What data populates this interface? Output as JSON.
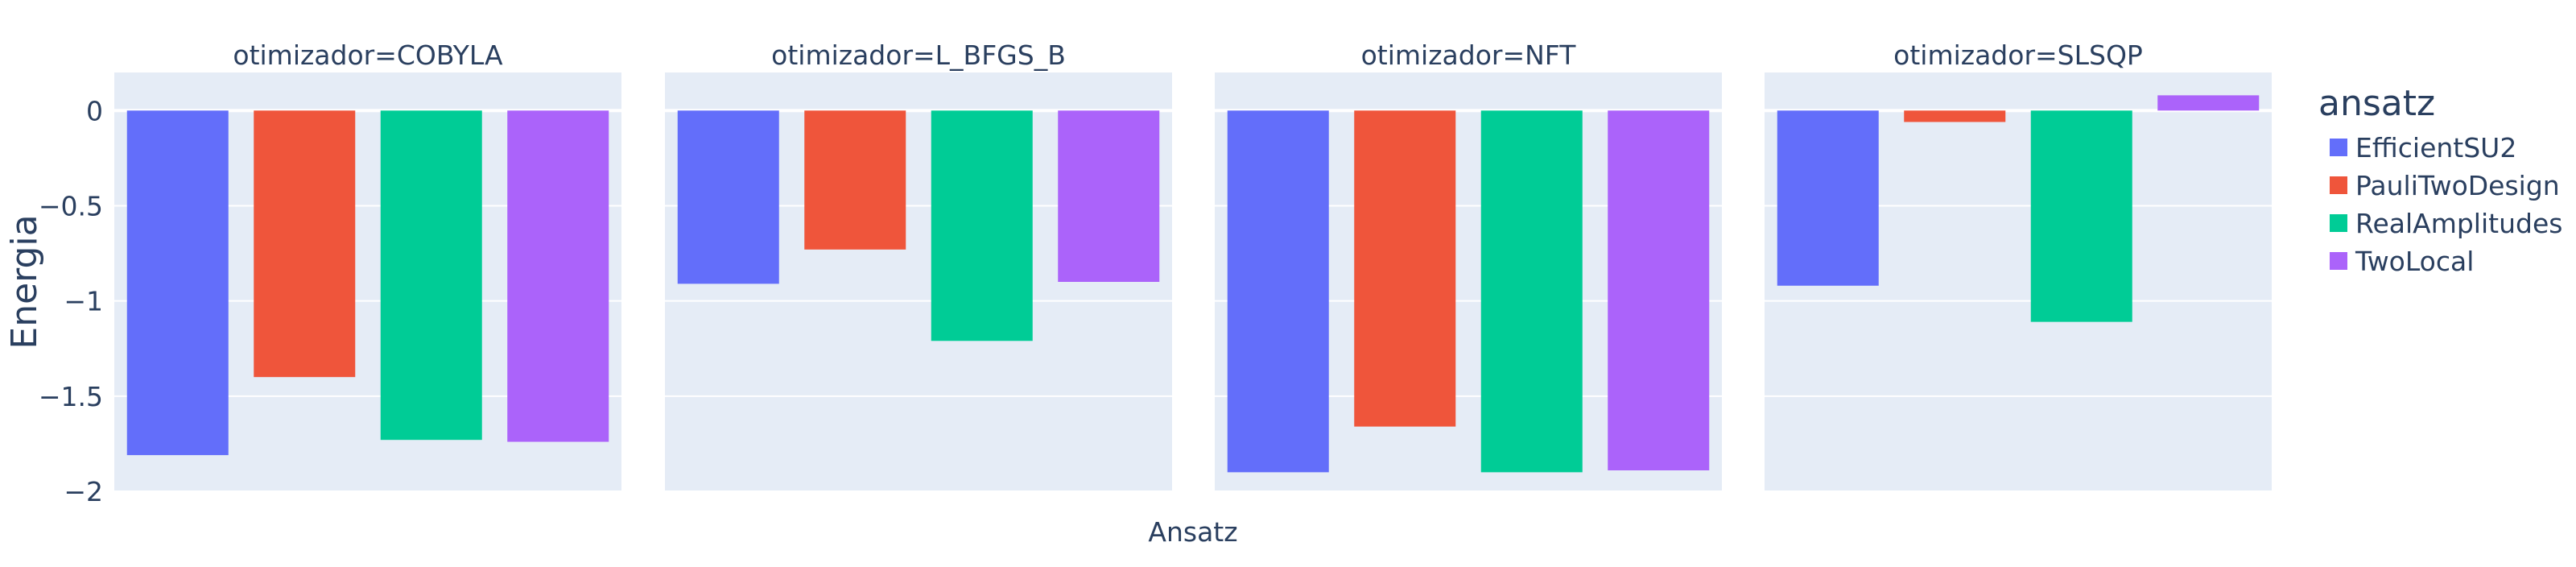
{
  "chart_data": {
    "type": "bar",
    "facet_titles": [
      "otimizador=COBYLA",
      "otimizador=L_BFGS_B",
      "otimizador=NFT",
      "otimizador=SLSQP"
    ],
    "categories": [
      "EfficientSU2",
      "PauliTwoDesign",
      "RealAmplitudes",
      "TwoLocal"
    ],
    "series": [
      {
        "facet": "otimizador=COBYLA",
        "values": [
          -1.81,
          -1.4,
          -1.73,
          -1.74
        ]
      },
      {
        "facet": "otimizador=L_BFGS_B",
        "values": [
          -0.91,
          -0.73,
          -1.21,
          -0.9
        ]
      },
      {
        "facet": "otimizador=NFT",
        "values": [
          -1.9,
          -1.66,
          -1.9,
          -1.89
        ]
      },
      {
        "facet": "otimizador=SLSQP",
        "values": [
          -0.92,
          -0.06,
          -1.11,
          0.08
        ]
      }
    ],
    "xlabel": "Ansatz",
    "ylabel": "Energia",
    "ylim": [
      -2.0,
      0.2
    ],
    "yticks": [
      0,
      -0.5,
      -1,
      -1.5,
      -2
    ],
    "ytick_labels": [
      "0",
      "−0.5",
      "−1",
      "−1.5",
      "−2"
    ],
    "grid": true,
    "legend": {
      "title": "ansatz",
      "position": "right",
      "entries": [
        "EfficientSU2",
        "PauliTwoDesign",
        "RealAmplitudes",
        "TwoLocal"
      ]
    },
    "colors": [
      "#636efa",
      "#EF553B",
      "#00cc96",
      "#ab63fa"
    ],
    "plot_background": "#E5ECF6"
  }
}
